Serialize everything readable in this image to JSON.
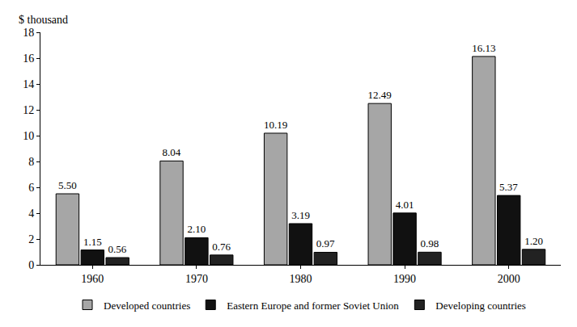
{
  "chart_data": {
    "type": "bar",
    "y_label": "$ thousand",
    "categories": [
      "1960",
      "1970",
      "1980",
      "1990",
      "2000"
    ],
    "series": [
      {
        "name": "Developed countries",
        "color": "#a6a6a6",
        "values": [
          5.5,
          8.04,
          10.19,
          12.49,
          16.13
        ],
        "value_labels": [
          "5.50",
          "8.04",
          "10.19",
          "12.49",
          "16.13"
        ]
      },
      {
        "name": "Eastern Europe and former Soviet Union",
        "color": "#111111",
        "values": [
          1.15,
          2.1,
          3.19,
          4.01,
          5.37
        ],
        "value_labels": [
          "1.15",
          "2.10",
          "3.19",
          "4.01",
          "5.37"
        ]
      },
      {
        "name": "Developing countries",
        "color": "#222222",
        "values": [
          0.56,
          0.76,
          0.97,
          0.98,
          1.2
        ],
        "value_labels": [
          "0.56",
          "0.76",
          "0.97",
          "0.98",
          "1.20"
        ]
      }
    ],
    "ylim": [
      0,
      18
    ],
    "yticks": [
      0,
      2,
      4,
      6,
      8,
      10,
      12,
      14,
      16,
      18
    ],
    "grid": false,
    "legend": "bottom",
    "data_labels": true
  }
}
